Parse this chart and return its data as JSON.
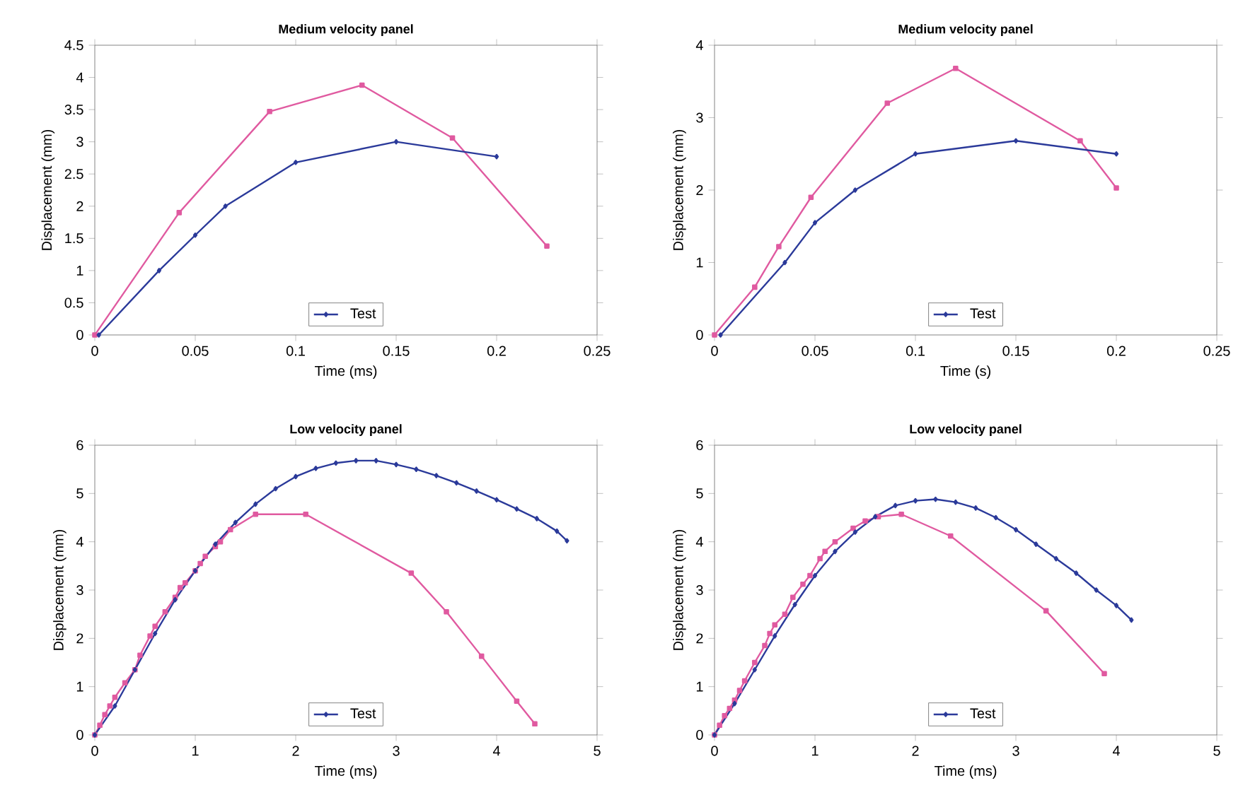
{
  "chart_data": [
    {
      "type": "line",
      "title": "Medium velocity panel",
      "xlabel": "Time (ms)",
      "ylabel": "Displacement (mm)",
      "xlim": [
        0,
        0.25
      ],
      "xticks": [
        0,
        0.05,
        0.1,
        0.15,
        0.2,
        0.25
      ],
      "ylim": [
        0,
        4.5
      ],
      "yticks": [
        0,
        0.5,
        1,
        1.5,
        2,
        2.5,
        3,
        3.5,
        4,
        4.5
      ],
      "legend": "bottom",
      "series": [
        {
          "name": "Test",
          "color": "#2b3a9a",
          "marker": "diamond",
          "x": [
            0.002,
            0.032,
            0.05,
            0.065,
            0.1,
            0.15,
            0.2
          ],
          "values": [
            0,
            1,
            1.55,
            2,
            2.68,
            3.0,
            2.77
          ]
        },
        {
          "color": "#e05aa0",
          "marker": "square",
          "x": [
            0,
            0.042,
            0.087,
            0.133,
            0.178,
            0.225
          ],
          "values": [
            0,
            1.9,
            3.47,
            3.88,
            3.06,
            1.38
          ]
        }
      ]
    },
    {
      "type": "line",
      "title": "Medium velocity panel",
      "xlabel": "Time (s)",
      "ylabel": "Displacement (mm)",
      "xlim": [
        0,
        0.25
      ],
      "xticks": [
        0,
        0.05,
        0.1,
        0.15,
        0.2,
        0.25
      ],
      "ylim": [
        0,
        4
      ],
      "yticks": [
        0,
        1,
        2,
        3,
        4
      ],
      "legend": "bottom",
      "series": [
        {
          "name": "Test",
          "color": "#2b3a9a",
          "marker": "diamond",
          "x": [
            0.003,
            0.035,
            0.05,
            0.07,
            0.1,
            0.15,
            0.2
          ],
          "values": [
            0,
            1,
            1.55,
            2,
            2.5,
            2.68,
            2.5
          ]
        },
        {
          "color": "#e05aa0",
          "marker": "square",
          "x": [
            0,
            0.02,
            0.032,
            0.048,
            0.086,
            0.12,
            0.182,
            0.2
          ],
          "values": [
            0,
            0.66,
            1.22,
            1.9,
            3.2,
            3.68,
            2.68,
            2.03
          ]
        }
      ]
    },
    {
      "type": "line",
      "title": "Low velocity panel",
      "xlabel": "Time (ms)",
      "ylabel": "Displacement (mm)",
      "xlim": [
        0,
        5
      ],
      "xticks": [
        0,
        1,
        2,
        3,
        4,
        5
      ],
      "ylim": [
        0,
        6
      ],
      "yticks": [
        0,
        1,
        2,
        3,
        4,
        5,
        6
      ],
      "legend": "bottom",
      "series": [
        {
          "name": "Test",
          "color": "#2b3a9a",
          "marker": "diamond",
          "x": [
            0,
            0.2,
            0.4,
            0.6,
            0.8,
            1.0,
            1.2,
            1.4,
            1.6,
            1.8,
            2.0,
            2.2,
            2.4,
            2.6,
            2.8,
            3.0,
            3.2,
            3.4,
            3.6,
            3.8,
            4.0,
            4.2,
            4.4,
            4.6,
            4.7
          ],
          "values": [
            0,
            0.6,
            1.35,
            2.1,
            2.8,
            3.4,
            3.95,
            4.4,
            4.78,
            5.1,
            5.35,
            5.52,
            5.63,
            5.68,
            5.68,
            5.6,
            5.5,
            5.37,
            5.22,
            5.05,
            4.87,
            4.68,
            4.48,
            4.22,
            4.02
          ]
        },
        {
          "color": "#e05aa0",
          "marker": "square",
          "x": [
            0,
            0.05,
            0.1,
            0.15,
            0.2,
            0.3,
            0.4,
            0.45,
            0.55,
            0.6,
            0.7,
            0.8,
            0.85,
            0.9,
            1.0,
            1.05,
            1.1,
            1.2,
            1.25,
            1.35,
            1.6,
            2.1,
            3.15,
            3.5,
            3.85,
            4.2,
            4.38
          ],
          "values": [
            0,
            0.2,
            0.42,
            0.6,
            0.78,
            1.08,
            1.35,
            1.65,
            2.05,
            2.25,
            2.55,
            2.85,
            3.05,
            3.15,
            3.4,
            3.55,
            3.7,
            3.9,
            4.0,
            4.25,
            4.57,
            4.57,
            3.35,
            2.55,
            1.63,
            0.7,
            0.23
          ]
        }
      ]
    },
    {
      "type": "line",
      "title": "Low velocity panel",
      "xlabel": "Time (ms)",
      "ylabel": "Displacement (mm)",
      "xlim": [
        0,
        5
      ],
      "xticks": [
        0,
        1,
        2,
        3,
        4,
        5
      ],
      "ylim": [
        0,
        6
      ],
      "yticks": [
        0,
        1,
        2,
        3,
        4,
        5,
        6
      ],
      "legend": "bottom",
      "series": [
        {
          "name": "Test",
          "color": "#2b3a9a",
          "marker": "diamond",
          "x": [
            0,
            0.2,
            0.4,
            0.6,
            0.8,
            1.0,
            1.2,
            1.4,
            1.6,
            1.8,
            2.0,
            2.2,
            2.4,
            2.6,
            2.8,
            3.0,
            3.2,
            3.4,
            3.6,
            3.8,
            4.0,
            4.15
          ],
          "values": [
            0,
            0.65,
            1.35,
            2.05,
            2.7,
            3.3,
            3.8,
            4.2,
            4.52,
            4.75,
            4.85,
            4.88,
            4.82,
            4.7,
            4.5,
            4.25,
            3.95,
            3.65,
            3.35,
            3.0,
            2.68,
            2.38
          ]
        },
        {
          "color": "#e05aa0",
          "marker": "square",
          "x": [
            0,
            0.05,
            0.1,
            0.15,
            0.2,
            0.25,
            0.3,
            0.4,
            0.5,
            0.55,
            0.6,
            0.7,
            0.78,
            0.88,
            0.95,
            1.05,
            1.1,
            1.2,
            1.38,
            1.5,
            1.63,
            1.86,
            2.35,
            3.3,
            3.88
          ],
          "values": [
            0,
            0.2,
            0.4,
            0.55,
            0.72,
            0.92,
            1.12,
            1.5,
            1.85,
            2.1,
            2.28,
            2.5,
            2.85,
            3.12,
            3.3,
            3.65,
            3.8,
            4.0,
            4.28,
            4.43,
            4.52,
            4.57,
            4.12,
            2.57,
            1.27
          ]
        }
      ]
    }
  ]
}
